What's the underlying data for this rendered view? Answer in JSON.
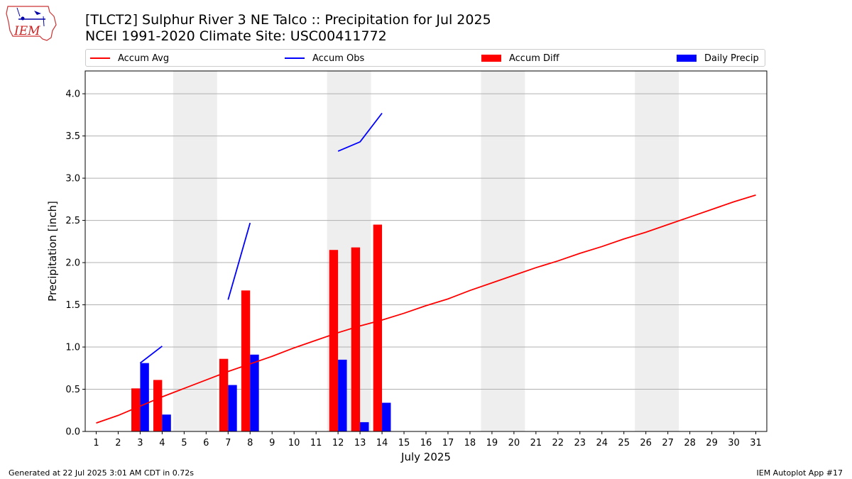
{
  "logo": {
    "text": "IEM",
    "icon": "iowa-state-outline-logo"
  },
  "footer": {
    "left": "Generated at 22 Jul 2025 3:01 AM CDT in 0.72s",
    "right": "IEM Autoplot App #17"
  },
  "chart_data": {
    "type": "bar",
    "title": "[TLCT2] Sulphur River 3 NE Talco :: Precipitation for Jul 2025",
    "subtitle": "NCEI 1991-2020 Climate Site: USC00411772",
    "xlabel": "July 2025",
    "ylabel": "Precipitation [inch]",
    "xlim": [
      0.5,
      31.5
    ],
    "ylim": [
      0,
      4.27
    ],
    "x_ticks": [
      1,
      2,
      3,
      4,
      5,
      6,
      7,
      8,
      9,
      10,
      11,
      12,
      13,
      14,
      15,
      16,
      17,
      18,
      19,
      20,
      21,
      22,
      23,
      24,
      25,
      26,
      27,
      28,
      29,
      30,
      31
    ],
    "y_ticks": [
      "0.0",
      "0.5",
      "1.0",
      "1.5",
      "2.0",
      "2.5",
      "3.0",
      "3.5",
      "4.0"
    ],
    "grid": "horizontal",
    "legend_position": "top",
    "weekend_shading_days": [
      [
        5,
        6
      ],
      [
        12,
        13
      ],
      [
        19,
        20
      ],
      [
        26,
        27
      ]
    ],
    "colors": {
      "avg": "#ff0000",
      "obs": "#0000ff",
      "diff": "#ff0000",
      "daily": "#0000ff",
      "shade": "#eeeeee",
      "grid": "#b0b0b0"
    },
    "series": [
      {
        "name": "Accum Avg",
        "kind": "line",
        "x": [
          1,
          2,
          3,
          4,
          5,
          6,
          7,
          8,
          9,
          10,
          11,
          12,
          13,
          14,
          15,
          16,
          17,
          18,
          19,
          20,
          21,
          22,
          23,
          24,
          25,
          26,
          27,
          28,
          29,
          30,
          31
        ],
        "values": [
          0.1,
          0.19,
          0.3,
          0.41,
          0.51,
          0.61,
          0.71,
          0.8,
          0.89,
          0.99,
          1.08,
          1.17,
          1.25,
          1.32,
          1.4,
          1.49,
          1.57,
          1.67,
          1.76,
          1.85,
          1.94,
          2.02,
          2.11,
          2.19,
          2.28,
          2.36,
          2.45,
          2.54,
          2.63,
          2.72,
          2.8
        ]
      },
      {
        "name": "Accum Obs",
        "kind": "line",
        "segments": [
          {
            "x": [
              3,
              4
            ],
            "values": [
              0.81,
              1.01
            ]
          },
          {
            "x": [
              7,
              8
            ],
            "values": [
              1.56,
              2.47
            ]
          },
          {
            "x": [
              12,
              13,
              14
            ],
            "values": [
              3.32,
              3.43,
              3.77
            ]
          }
        ]
      },
      {
        "name": "Accum Diff",
        "kind": "bar",
        "x": [
          3,
          4,
          7,
          8,
          12,
          13,
          14
        ],
        "values": [
          0.51,
          0.61,
          0.86,
          1.67,
          2.15,
          2.18,
          2.45
        ]
      },
      {
        "name": "Daily Precip",
        "kind": "bar",
        "x": [
          3,
          4,
          7,
          8,
          12,
          13,
          14
        ],
        "values": [
          0.81,
          0.2,
          0.55,
          0.91,
          0.85,
          0.11,
          0.34
        ]
      }
    ]
  }
}
